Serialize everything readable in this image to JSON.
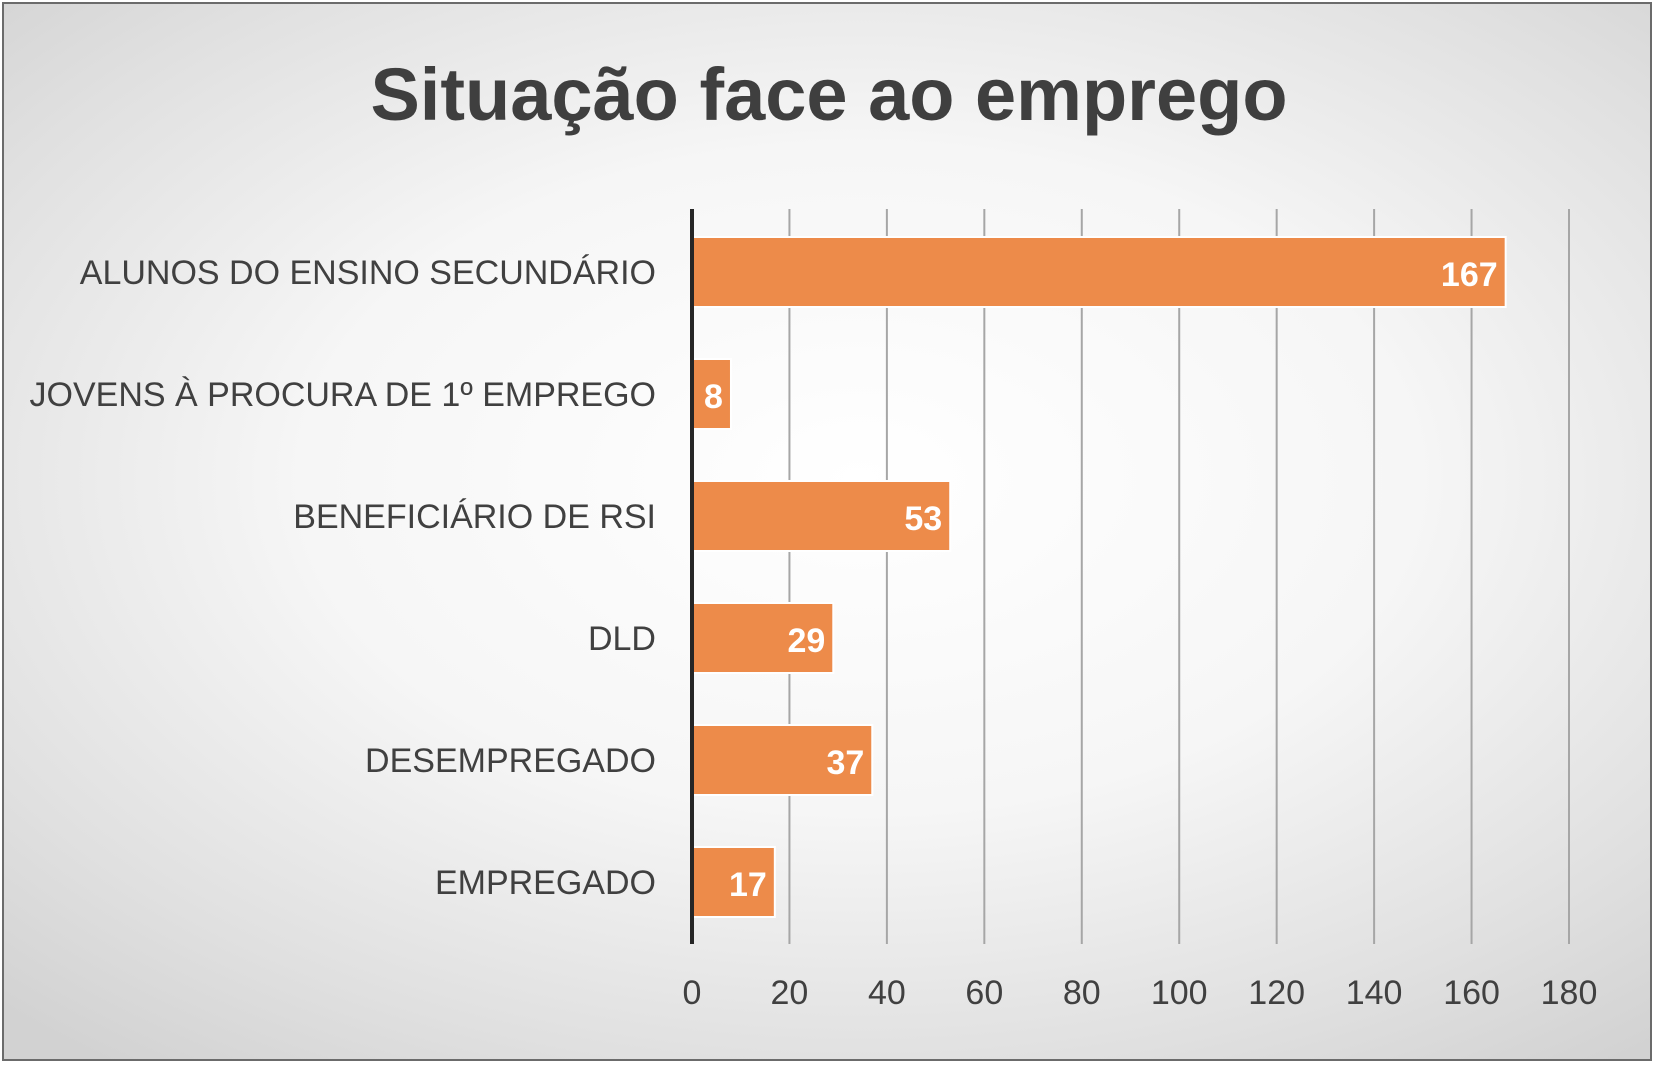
{
  "chart_data": {
    "type": "bar",
    "orientation": "horizontal",
    "title": "Situação face ao emprego",
    "categories": [
      "ALUNOS DO ENSINO SECUNDÁRIO",
      "JOVENS À PROCURA DE 1º EMPREGO",
      "BENEFICIÁRIO DE RSI",
      "DLD",
      "DESEMPREGADO",
      "EMPREGADO"
    ],
    "values": [
      167,
      8,
      53,
      29,
      37,
      17
    ],
    "xlabel": "",
    "ylabel": "",
    "xlim": [
      0,
      180
    ],
    "xticks": [
      0,
      20,
      40,
      60,
      80,
      100,
      120,
      140,
      160,
      180
    ],
    "grid": true,
    "legend": "none",
    "bar_color": "#ED8B4A",
    "data_label_color": "#FFFFFF"
  }
}
